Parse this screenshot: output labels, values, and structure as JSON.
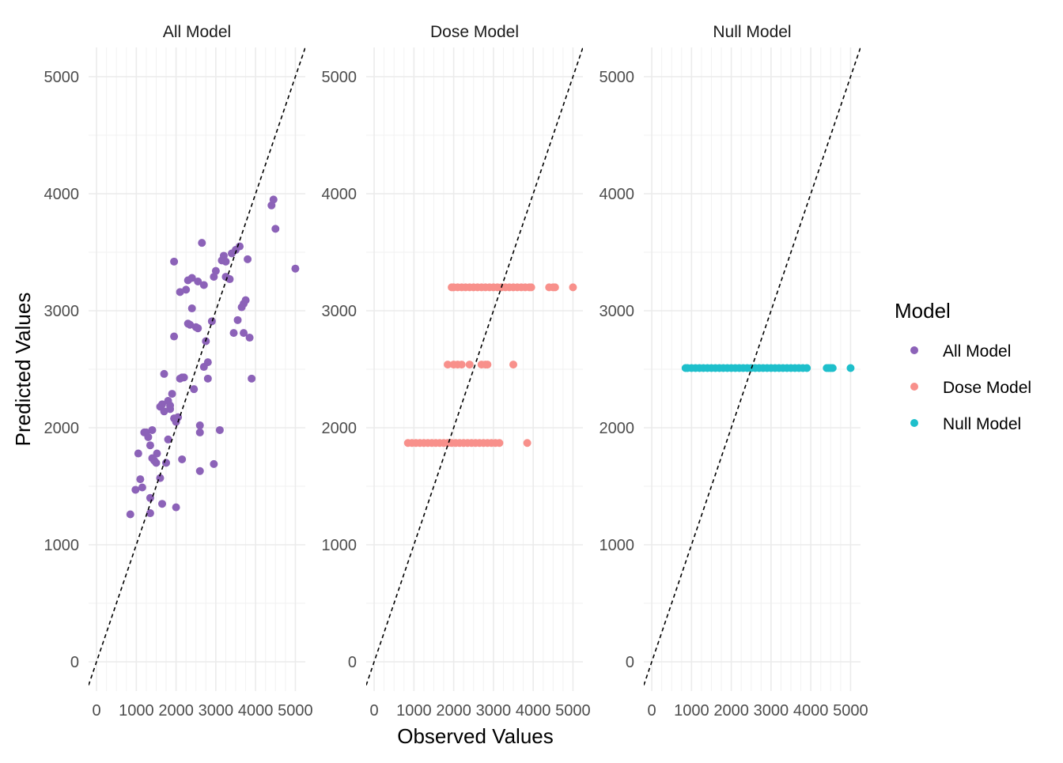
{
  "chart_data": {
    "type": "scatter",
    "xlabel": "Observed Values",
    "ylabel": "Predicted Values",
    "xlim": [
      -200,
      5250
    ],
    "ylim": [
      -250,
      5250
    ],
    "x_ticks": [
      0,
      1000,
      2000,
      3000,
      4000,
      5000
    ],
    "x_tick_labels": [
      "0",
      "1000",
      "2000",
      "3000",
      "4000",
      "5000"
    ],
    "y_ticks": [
      0,
      1000,
      2000,
      3000,
      4000,
      5000
    ],
    "y_tick_labels": [
      "0",
      "1000",
      "2000",
      "3000",
      "4000",
      "5000"
    ],
    "grid": true,
    "reference_line": {
      "slope": 1,
      "intercept": 0,
      "style": "dashed",
      "color": "#000000"
    },
    "legend": {
      "title": "Model",
      "placement": "right",
      "entries": [
        {
          "label": "All Model",
          "color": "#8c62b8"
        },
        {
          "label": "Dose Model",
          "color": "#f8908b"
        },
        {
          "label": "Null Model",
          "color": "#1ebfcb"
        }
      ]
    },
    "panels": [
      {
        "title": "All Model",
        "color": "#8c62b8",
        "points": [
          [
            850,
            1260
          ],
          [
            980,
            1470
          ],
          [
            1050,
            1780
          ],
          [
            1100,
            1560
          ],
          [
            1150,
            1490
          ],
          [
            1200,
            1960
          ],
          [
            1250,
            1960
          ],
          [
            1300,
            1920
          ],
          [
            1350,
            1270
          ],
          [
            1350,
            1400
          ],
          [
            1350,
            1850
          ],
          [
            1400,
            1980
          ],
          [
            1400,
            1740
          ],
          [
            1450,
            1720
          ],
          [
            1500,
            1700
          ],
          [
            1520,
            1780
          ],
          [
            1600,
            2180
          ],
          [
            1600,
            1570
          ],
          [
            1650,
            1350
          ],
          [
            1650,
            2200
          ],
          [
            1700,
            2140
          ],
          [
            1700,
            2460
          ],
          [
            1750,
            1700
          ],
          [
            1800,
            1900
          ],
          [
            1800,
            2230
          ],
          [
            1850,
            2160
          ],
          [
            1850,
            2190
          ],
          [
            1900,
            2290
          ],
          [
            1950,
            3420
          ],
          [
            1950,
            2780
          ],
          [
            1950,
            2080
          ],
          [
            2000,
            1320
          ],
          [
            2000,
            2050
          ],
          [
            2050,
            2090
          ],
          [
            2100,
            2420
          ],
          [
            2100,
            3160
          ],
          [
            2150,
            1730
          ],
          [
            2150,
            2430
          ],
          [
            2200,
            2430
          ],
          [
            2250,
            3180
          ],
          [
            2300,
            3260
          ],
          [
            2300,
            2890
          ],
          [
            2350,
            2880
          ],
          [
            2400,
            3020
          ],
          [
            2400,
            3280
          ],
          [
            2450,
            2330
          ],
          [
            2500,
            2860
          ],
          [
            2550,
            3250
          ],
          [
            2550,
            2850
          ],
          [
            2600,
            1630
          ],
          [
            2600,
            2020
          ],
          [
            2600,
            1960
          ],
          [
            2650,
            3580
          ],
          [
            2700,
            3220
          ],
          [
            2700,
            2520
          ],
          [
            2750,
            2740
          ],
          [
            2800,
            2560
          ],
          [
            2800,
            2420
          ],
          [
            2900,
            2910
          ],
          [
            2950,
            1690
          ],
          [
            2950,
            3290
          ],
          [
            3000,
            3340
          ],
          [
            3100,
            1980
          ],
          [
            3150,
            3430
          ],
          [
            3200,
            3470
          ],
          [
            3250,
            3290
          ],
          [
            3250,
            3420
          ],
          [
            3350,
            3270
          ],
          [
            3400,
            3490
          ],
          [
            3450,
            2810
          ],
          [
            3500,
            3520
          ],
          [
            3550,
            2920
          ],
          [
            3600,
            3550
          ],
          [
            3650,
            3030
          ],
          [
            3700,
            3060
          ],
          [
            3700,
            2810
          ],
          [
            3750,
            3090
          ],
          [
            3800,
            3440
          ],
          [
            3850,
            2770
          ],
          [
            3900,
            2420
          ],
          [
            4400,
            3900
          ],
          [
            4450,
            3950
          ],
          [
            4500,
            3700
          ],
          [
            5000,
            3360
          ]
        ]
      },
      {
        "title": "Dose Model",
        "color": "#f8908b",
        "points": [
          [
            1950,
            3200
          ],
          [
            2000,
            3200
          ],
          [
            2100,
            3200
          ],
          [
            2200,
            3200
          ],
          [
            2300,
            3200
          ],
          [
            2400,
            3200
          ],
          [
            2500,
            3200
          ],
          [
            2600,
            3200
          ],
          [
            2700,
            3200
          ],
          [
            2800,
            3200
          ],
          [
            2900,
            3200
          ],
          [
            3000,
            3200
          ],
          [
            3100,
            3200
          ],
          [
            3200,
            3200
          ],
          [
            3300,
            3200
          ],
          [
            3400,
            3200
          ],
          [
            3500,
            3200
          ],
          [
            3600,
            3200
          ],
          [
            3700,
            3200
          ],
          [
            3800,
            3200
          ],
          [
            3900,
            3200
          ],
          [
            3950,
            3200
          ],
          [
            4400,
            3200
          ],
          [
            4500,
            3200
          ],
          [
            4550,
            3200
          ],
          [
            5000,
            3200
          ],
          [
            1850,
            2540
          ],
          [
            2000,
            2540
          ],
          [
            2100,
            2540
          ],
          [
            2200,
            2540
          ],
          [
            2400,
            2540
          ],
          [
            2700,
            2540
          ],
          [
            2800,
            2540
          ],
          [
            2850,
            2540
          ],
          [
            3500,
            2540
          ],
          [
            850,
            1870
          ],
          [
            950,
            1870
          ],
          [
            1050,
            1870
          ],
          [
            1150,
            1870
          ],
          [
            1250,
            1870
          ],
          [
            1350,
            1870
          ],
          [
            1450,
            1870
          ],
          [
            1550,
            1870
          ],
          [
            1650,
            1870
          ],
          [
            1750,
            1870
          ],
          [
            1850,
            1870
          ],
          [
            1950,
            1870
          ],
          [
            2050,
            1870
          ],
          [
            2150,
            1870
          ],
          [
            2250,
            1870
          ],
          [
            2350,
            1870
          ],
          [
            2450,
            1870
          ],
          [
            2550,
            1870
          ],
          [
            2650,
            1870
          ],
          [
            2750,
            1870
          ],
          [
            2850,
            1870
          ],
          [
            2950,
            1870
          ],
          [
            3050,
            1870
          ],
          [
            3150,
            1870
          ],
          [
            3850,
            1870
          ]
        ]
      },
      {
        "title": "Null Model",
        "color": "#1ebfcb",
        "points": [
          [
            850,
            2510
          ],
          [
            900,
            2510
          ],
          [
            1000,
            2510
          ],
          [
            1100,
            2510
          ],
          [
            1200,
            2510
          ],
          [
            1300,
            2510
          ],
          [
            1400,
            2510
          ],
          [
            1500,
            2510
          ],
          [
            1600,
            2510
          ],
          [
            1700,
            2510
          ],
          [
            1800,
            2510
          ],
          [
            1900,
            2510
          ],
          [
            2000,
            2510
          ],
          [
            2100,
            2510
          ],
          [
            2200,
            2510
          ],
          [
            2300,
            2510
          ],
          [
            2400,
            2510
          ],
          [
            2500,
            2510
          ],
          [
            2600,
            2510
          ],
          [
            2700,
            2510
          ],
          [
            2800,
            2510
          ],
          [
            2900,
            2510
          ],
          [
            3000,
            2510
          ],
          [
            3100,
            2510
          ],
          [
            3200,
            2510
          ],
          [
            3300,
            2510
          ],
          [
            3400,
            2510
          ],
          [
            3500,
            2510
          ],
          [
            3600,
            2510
          ],
          [
            3700,
            2510
          ],
          [
            3800,
            2510
          ],
          [
            3900,
            2510
          ],
          [
            4400,
            2510
          ],
          [
            4450,
            2510
          ],
          [
            4500,
            2510
          ],
          [
            4550,
            2510
          ],
          [
            5000,
            2510
          ]
        ]
      }
    ]
  }
}
